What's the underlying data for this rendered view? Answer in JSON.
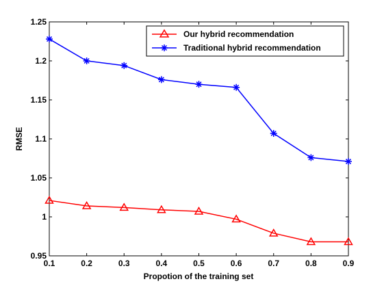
{
  "chart_data": {
    "type": "line",
    "title": "",
    "xlabel": "Propotion of the training set",
    "ylabel": "RMSE",
    "xlim": [
      0.1,
      0.9
    ],
    "ylim": [
      0.95,
      1.25
    ],
    "xticks": [
      "0.1",
      "0.2",
      "0.3",
      "0.4",
      "0.5",
      "0.6",
      "0.7",
      "0.8",
      "0.9"
    ],
    "yticks": [
      "0.95",
      "1",
      "1.05",
      "1.1",
      "1.15",
      "1.2",
      "1.25"
    ],
    "grid": false,
    "legend_position": "top-right",
    "x": [
      0.1,
      0.2,
      0.3,
      0.4,
      0.5,
      0.6,
      0.7,
      0.8,
      0.9
    ],
    "series": [
      {
        "name": "Our hybrid recommendation",
        "color": "#ff0000",
        "marker": "triangle",
        "values": [
          1.021,
          1.014,
          1.012,
          1.009,
          1.007,
          0.997,
          0.979,
          0.968,
          0.968
        ]
      },
      {
        "name": "Traditional hybrid recommendation",
        "color": "#0000ff",
        "marker": "asterisk",
        "values": [
          1.228,
          1.2,
          1.194,
          1.176,
          1.17,
          1.166,
          1.107,
          1.076,
          1.071
        ]
      }
    ]
  }
}
